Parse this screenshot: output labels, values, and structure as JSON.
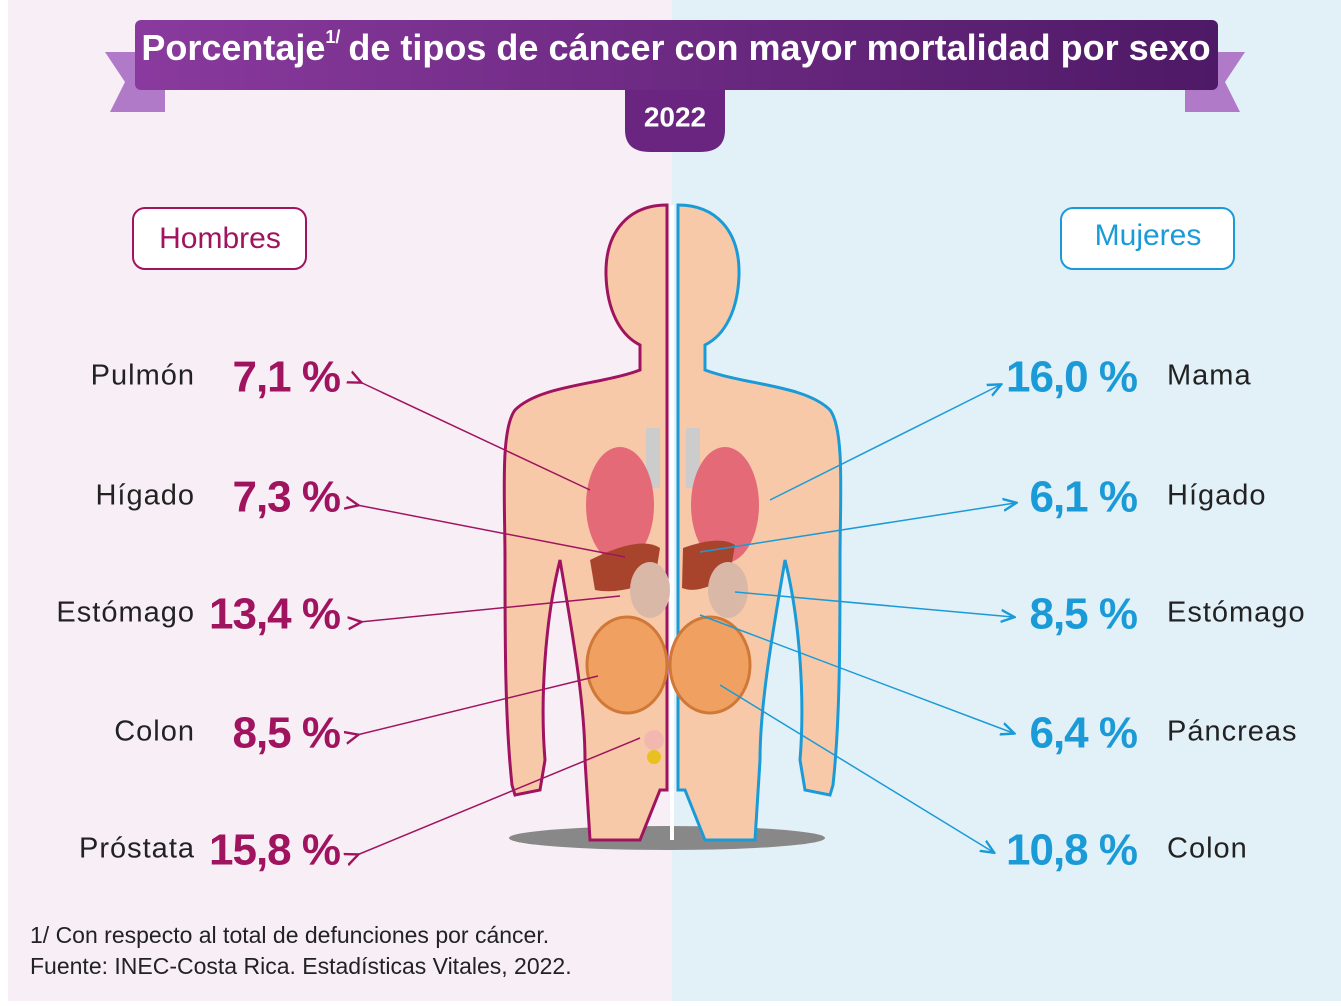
{
  "header": {
    "title": "Porcentaje",
    "title_note": "1/",
    "title_rest": "de tipos de cáncer con mayor mortalidad por sexo",
    "year": "2022"
  },
  "men": {
    "label": "Hombres",
    "items": [
      {
        "name": "Pulmón",
        "value": "7,1 %"
      },
      {
        "name": "Hígado",
        "value": "7,3 %"
      },
      {
        "name": "Estómago",
        "value": "13,4 %"
      },
      {
        "name": "Colon",
        "value": "8,5 %"
      },
      {
        "name": "Próstata",
        "value": "15,8 %"
      }
    ]
  },
  "women": {
    "label": "Mujeres",
    "items": [
      {
        "name": "Mama",
        "value": "16,0 %"
      },
      {
        "name": "Hígado",
        "value": "6,1 %"
      },
      {
        "name": "Estómago",
        "value": "8,5 %"
      },
      {
        "name": "Páncreas",
        "value": "6,4 %"
      },
      {
        "name": "Colon",
        "value": "10,8 %"
      }
    ]
  },
  "footnotes": [
    "1/ Con respecto al total de defunciones por cáncer.",
    "Fuente: INEC-Costa Rica. Estadísticas Vitales, 2022."
  ]
}
